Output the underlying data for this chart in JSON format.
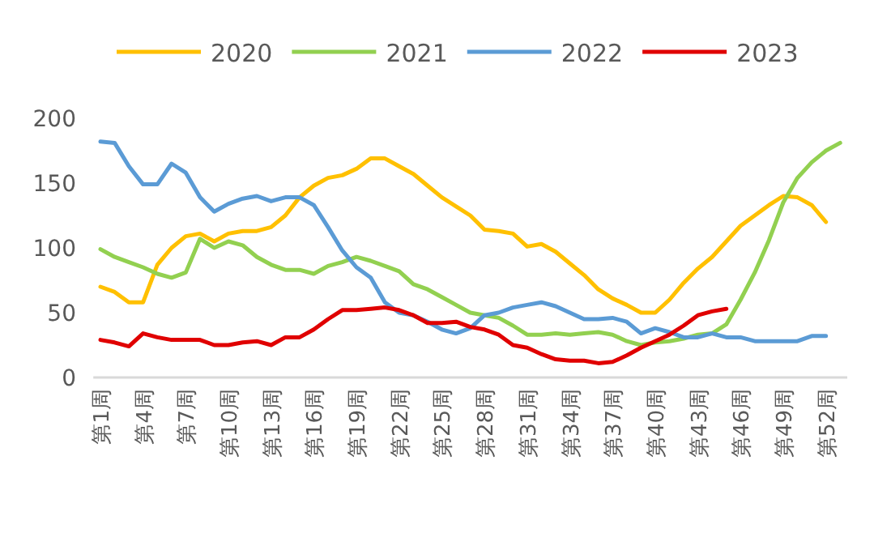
{
  "chart_data": {
    "type": "line",
    "categories": [
      "第1周",
      null,
      null,
      "第4周",
      null,
      null,
      "第7周",
      null,
      null,
      "第10周",
      null,
      null,
      "第13周",
      null,
      null,
      "第16周",
      null,
      null,
      "第19周",
      null,
      null,
      "第22周",
      null,
      null,
      "第25周",
      null,
      null,
      "第28周",
      null,
      null,
      "第31周",
      null,
      null,
      "第34周",
      null,
      null,
      "第37周",
      null,
      null,
      "第40周",
      null,
      null,
      "第43周",
      null,
      null,
      "第46周",
      null,
      null,
      "第49周",
      null,
      null,
      "第52周",
      null
    ],
    "ylim": [
      0,
      200
    ],
    "yticks": [
      0,
      50,
      100,
      150,
      200
    ],
    "grid": false,
    "legend": "top",
    "marker": "none",
    "line_style": "solid",
    "series": [
      {
        "name": "2020",
        "color": "#ffc000",
        "values": [
          70,
          66,
          58,
          58,
          87,
          100,
          109,
          111,
          105,
          111,
          113,
          113,
          116,
          125,
          139,
          148,
          154,
          156,
          161,
          169,
          169,
          163,
          157,
          148,
          139,
          132,
          125,
          114,
          113,
          111,
          101,
          103,
          97,
          88,
          79,
          68,
          61,
          56,
          50,
          50,
          60,
          73,
          84,
          93,
          105,
          117,
          125,
          133,
          140,
          139,
          133,
          120,
          null
        ]
      },
      {
        "name": "2021",
        "color": "#92d050",
        "values": [
          99,
          93,
          89,
          85,
          80,
          77,
          81,
          107,
          100,
          105,
          102,
          93,
          87,
          83,
          83,
          80,
          86,
          89,
          93,
          90,
          86,
          82,
          72,
          68,
          62,
          56,
          50,
          48,
          46,
          40,
          33,
          33,
          34,
          33,
          34,
          35,
          33,
          28,
          25,
          27,
          28,
          30,
          33,
          34,
          41,
          60,
          81,
          106,
          135,
          154,
          166,
          175,
          181
        ]
      },
      {
        "name": "2022",
        "color": "#5b9bd5",
        "values": [
          182,
          181,
          163,
          149,
          149,
          165,
          158,
          139,
          128,
          134,
          138,
          140,
          136,
          139,
          139,
          133,
          116,
          98,
          85,
          77,
          58,
          50,
          48,
          43,
          37,
          34,
          38,
          48,
          50,
          54,
          56,
          58,
          55,
          50,
          45,
          45,
          46,
          43,
          34,
          38,
          35,
          31,
          31,
          34,
          31,
          31,
          28,
          28,
          28,
          28,
          32,
          32,
          null
        ]
      },
      {
        "name": "2023",
        "color": "#e00000",
        "values": [
          29,
          27,
          24,
          34,
          31,
          29,
          29,
          29,
          25,
          25,
          27,
          28,
          25,
          31,
          31,
          37,
          45,
          52,
          52,
          53,
          54,
          52,
          48,
          42,
          42,
          43,
          39,
          37,
          33,
          25,
          23,
          18,
          14,
          13,
          13,
          11,
          12,
          17,
          23,
          28,
          33,
          40,
          48,
          51,
          53,
          null,
          null,
          null,
          null,
          null,
          null,
          null,
          null
        ]
      }
    ]
  }
}
